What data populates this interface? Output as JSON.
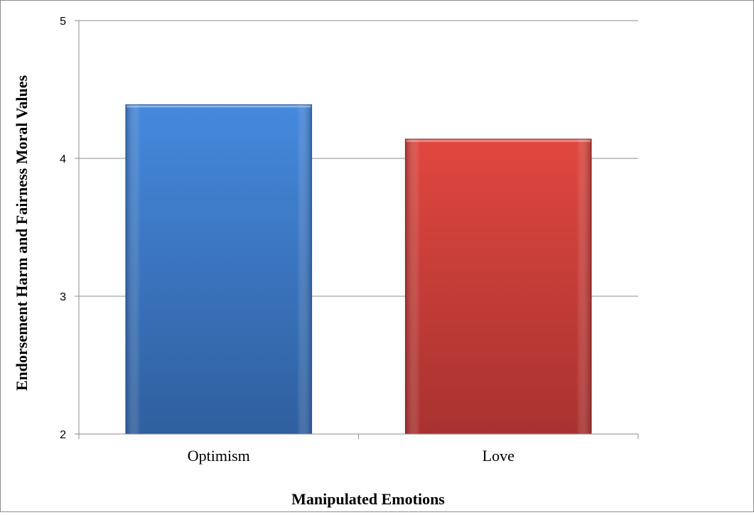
{
  "chart_data": {
    "type": "bar",
    "categories": [
      "Optimism",
      "Love"
    ],
    "values": [
      4.39,
      4.14
    ],
    "xlabel": "Manipulated Emotions",
    "ylabel": "Endorsement Harm and Fairness Moral Values",
    "ylim": [
      2,
      5
    ],
    "yticks": [
      "2",
      "3",
      "4",
      "5"
    ],
    "grid": true,
    "legend": "none",
    "colors": [
      "#3f7fd0",
      "#d64541"
    ]
  }
}
